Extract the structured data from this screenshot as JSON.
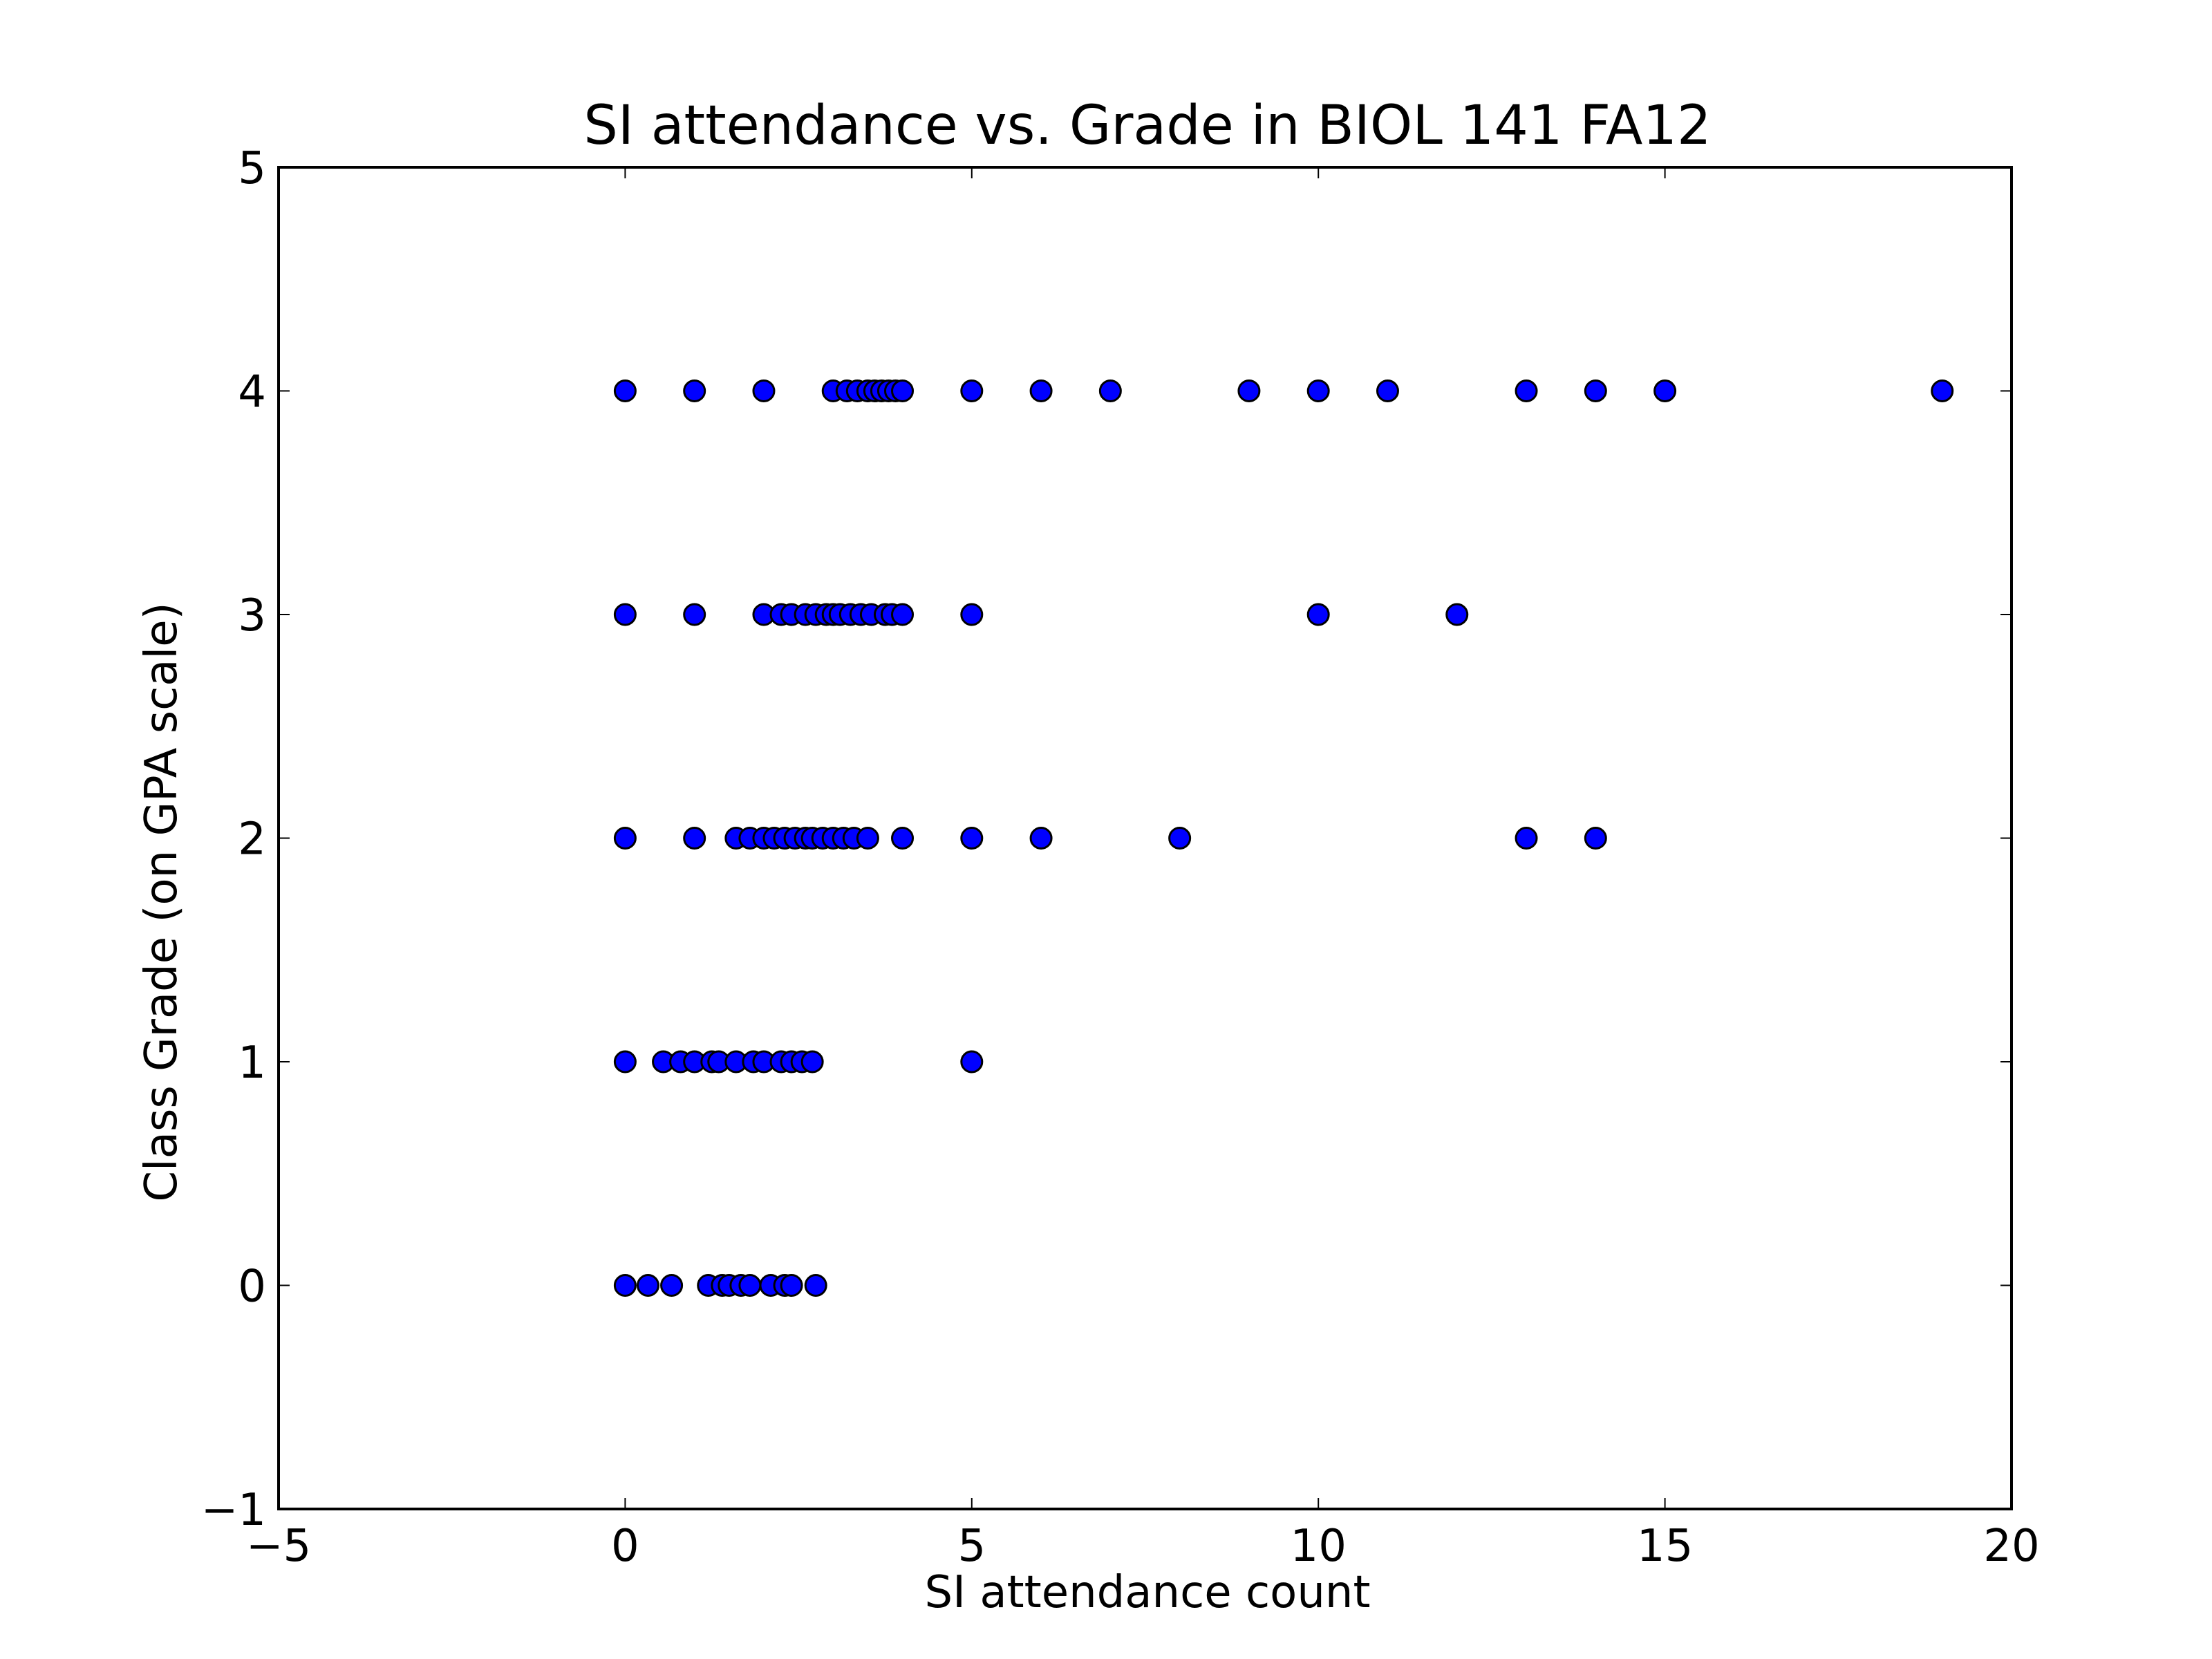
{
  "chart_data": {
    "type": "scatter",
    "title": "SI attendance vs. Grade in BIOL 141 FA12",
    "xlabel": "SI attendance count",
    "ylabel": "Class Grade (on GPA scale)",
    "xlim": [
      -5,
      20
    ],
    "ylim": [
      -1,
      5
    ],
    "xticks": [
      -5,
      0,
      5,
      10,
      15,
      20
    ],
    "yticks": [
      -1,
      0,
      1,
      2,
      3,
      4,
      5
    ],
    "xtick_labels": [
      "−5",
      "0",
      "5",
      "10",
      "15",
      "20"
    ],
    "ytick_labels": [
      "−1",
      "0",
      "1",
      "2",
      "3",
      "4",
      "5"
    ],
    "grid": false,
    "legend": "none",
    "marker_color": "#0000ff",
    "marker_edge_color": "#000000",
    "points": [
      {
        "x": 0,
        "y": 4
      },
      {
        "x": 1,
        "y": 4
      },
      {
        "x": 2,
        "y": 4
      },
      {
        "x": 3,
        "y": 4
      },
      {
        "x": 3.2,
        "y": 4
      },
      {
        "x": 3.35,
        "y": 4
      },
      {
        "x": 3.5,
        "y": 4
      },
      {
        "x": 3.6,
        "y": 4
      },
      {
        "x": 3.7,
        "y": 4
      },
      {
        "x": 3.8,
        "y": 4
      },
      {
        "x": 3.9,
        "y": 4
      },
      {
        "x": 4,
        "y": 4
      },
      {
        "x": 5,
        "y": 4
      },
      {
        "x": 6,
        "y": 4
      },
      {
        "x": 7,
        "y": 4
      },
      {
        "x": 9,
        "y": 4
      },
      {
        "x": 10,
        "y": 4
      },
      {
        "x": 11,
        "y": 4
      },
      {
        "x": 13,
        "y": 4
      },
      {
        "x": 14,
        "y": 4
      },
      {
        "x": 15,
        "y": 4
      },
      {
        "x": 19,
        "y": 4
      },
      {
        "x": 0,
        "y": 3
      },
      {
        "x": 1,
        "y": 3
      },
      {
        "x": 2,
        "y": 3
      },
      {
        "x": 2.25,
        "y": 3
      },
      {
        "x": 2.4,
        "y": 3
      },
      {
        "x": 2.6,
        "y": 3
      },
      {
        "x": 2.75,
        "y": 3
      },
      {
        "x": 2.9,
        "y": 3
      },
      {
        "x": 3,
        "y": 3
      },
      {
        "x": 3.1,
        "y": 3
      },
      {
        "x": 3.25,
        "y": 3
      },
      {
        "x": 3.4,
        "y": 3
      },
      {
        "x": 3.55,
        "y": 3
      },
      {
        "x": 3.75,
        "y": 3
      },
      {
        "x": 3.85,
        "y": 3
      },
      {
        "x": 4,
        "y": 3
      },
      {
        "x": 5,
        "y": 3
      },
      {
        "x": 10,
        "y": 3
      },
      {
        "x": 12,
        "y": 3
      },
      {
        "x": 0,
        "y": 2
      },
      {
        "x": 1,
        "y": 2
      },
      {
        "x": 1.6,
        "y": 2
      },
      {
        "x": 1.8,
        "y": 2
      },
      {
        "x": 2,
        "y": 2
      },
      {
        "x": 2.15,
        "y": 2
      },
      {
        "x": 2.3,
        "y": 2
      },
      {
        "x": 2.45,
        "y": 2
      },
      {
        "x": 2.6,
        "y": 2
      },
      {
        "x": 2.7,
        "y": 2
      },
      {
        "x": 2.85,
        "y": 2
      },
      {
        "x": 3,
        "y": 2
      },
      {
        "x": 3.15,
        "y": 2
      },
      {
        "x": 3.3,
        "y": 2
      },
      {
        "x": 3.5,
        "y": 2
      },
      {
        "x": 4,
        "y": 2
      },
      {
        "x": 5,
        "y": 2
      },
      {
        "x": 6,
        "y": 2
      },
      {
        "x": 8,
        "y": 2
      },
      {
        "x": 13,
        "y": 2
      },
      {
        "x": 14,
        "y": 2
      },
      {
        "x": 0,
        "y": 1
      },
      {
        "x": 0.55,
        "y": 1
      },
      {
        "x": 0.8,
        "y": 1
      },
      {
        "x": 1,
        "y": 1
      },
      {
        "x": 1.25,
        "y": 1
      },
      {
        "x": 1.35,
        "y": 1
      },
      {
        "x": 1.6,
        "y": 1
      },
      {
        "x": 1.85,
        "y": 1
      },
      {
        "x": 2,
        "y": 1
      },
      {
        "x": 2.25,
        "y": 1
      },
      {
        "x": 2.4,
        "y": 1
      },
      {
        "x": 2.55,
        "y": 1
      },
      {
        "x": 2.7,
        "y": 1
      },
      {
        "x": 5,
        "y": 1
      },
      {
        "x": 0,
        "y": 0
      },
      {
        "x": 0.33,
        "y": 0
      },
      {
        "x": 0.67,
        "y": 0
      },
      {
        "x": 1.2,
        "y": 0
      },
      {
        "x": 1.4,
        "y": 0
      },
      {
        "x": 1.5,
        "y": 0
      },
      {
        "x": 1.67,
        "y": 0
      },
      {
        "x": 1.8,
        "y": 0
      },
      {
        "x": 2.1,
        "y": 0
      },
      {
        "x": 2.3,
        "y": 0
      },
      {
        "x": 2.4,
        "y": 0
      },
      {
        "x": 2.75,
        "y": 0
      }
    ]
  }
}
